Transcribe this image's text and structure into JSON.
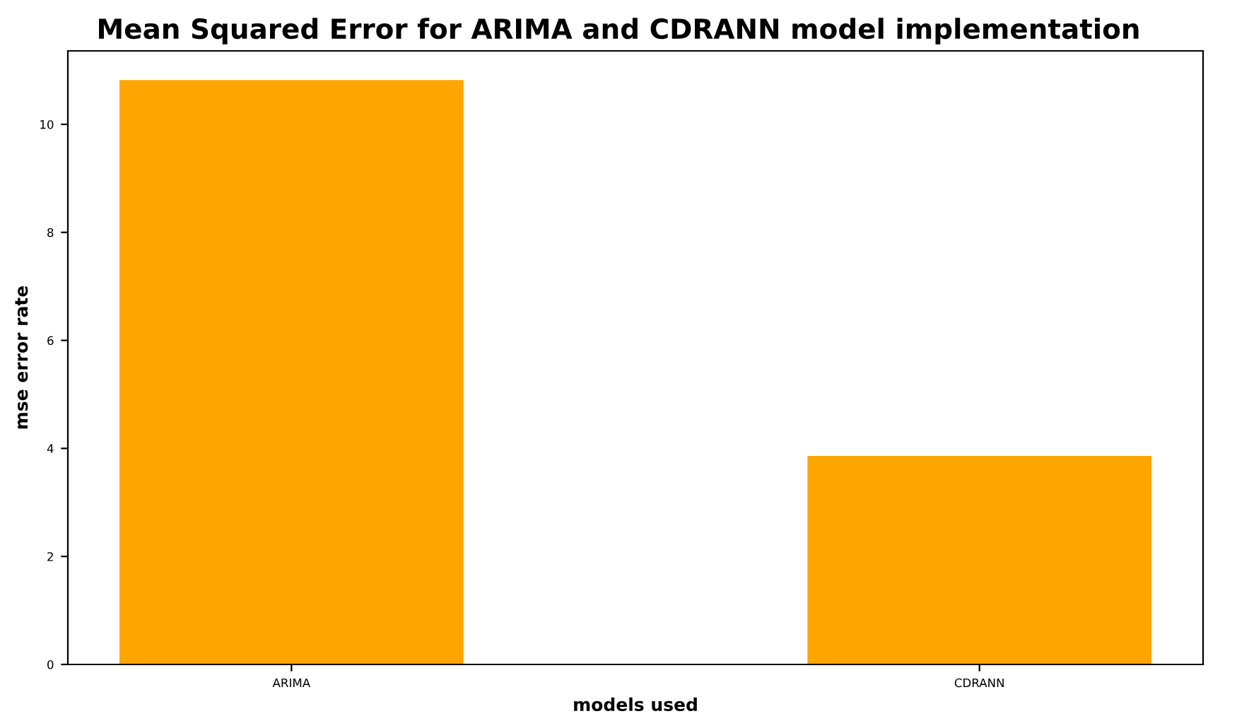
{
  "chart_data": {
    "type": "bar",
    "title": "Mean Squared Error for ARIMA and CDRANN model implementation",
    "xlabel": "models used",
    "ylabel": "mse error rate",
    "categories": [
      "ARIMA",
      "CDRANN"
    ],
    "values": [
      10.82,
      3.86
    ],
    "color": "#ffa500",
    "ylim": [
      0,
      11.36
    ],
    "yticks": [
      0,
      2,
      4,
      6,
      8,
      10
    ],
    "grid": false
  }
}
